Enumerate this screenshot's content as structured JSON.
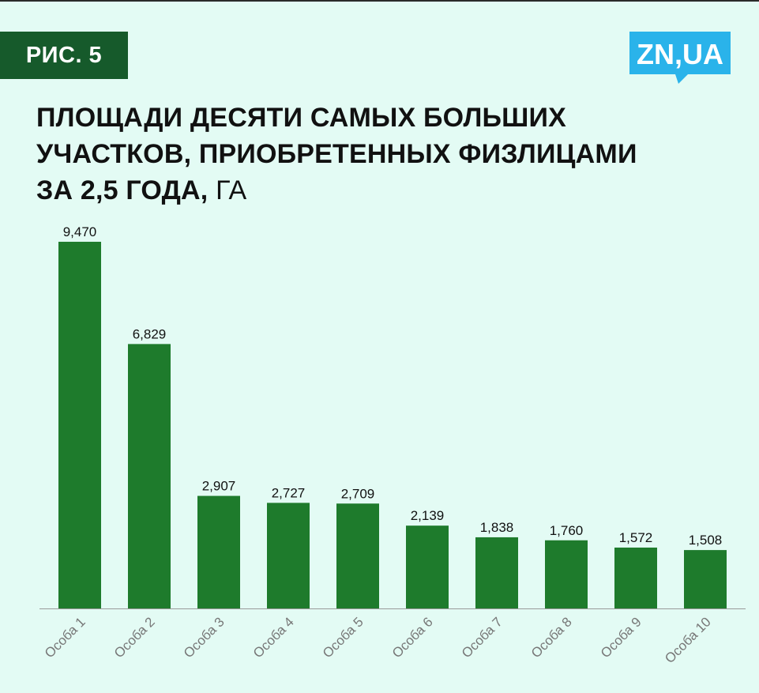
{
  "badge": "РИС. 5",
  "logo": {
    "text": "ZN,UA",
    "color": "#2ab3ea"
  },
  "title": {
    "lines": [
      "ПЛОЩАДИ ДЕСЯТИ САМЫХ БОЛЬШИХ",
      "УЧАСТКОВ, ПРИОБРЕТЕННЫХ ФИЗЛИЦАМИ",
      "ЗА 2,5 ГОДА,"
    ],
    "unit": "ГА"
  },
  "colors": {
    "bar": "#1e7b2c",
    "badge": "#165a2b",
    "background": "#e3fbf4"
  },
  "chart_data": {
    "type": "bar",
    "categories": [
      "Особа 1",
      "Особа 2",
      "Особа 3",
      "Особа 4",
      "Особа 5",
      "Особа 6",
      "Особа 7",
      "Особа 8",
      "Особа 9",
      "Особа 10"
    ],
    "values": [
      9.47,
      6.829,
      2.907,
      2.727,
      2.709,
      2.139,
      1.838,
      1.76,
      1.572,
      1.508
    ],
    "value_labels": [
      "9,470",
      "6,829",
      "2,907",
      "2,727",
      "2,709",
      "2,139",
      "1,838",
      "1,760",
      "1,572",
      "1,508"
    ],
    "title": "ПЛОЩАДИ ДЕСЯТИ САМЫХ БОЛЬШИХ УЧАСТКОВ, ПРИОБРЕТЕННЫХ ФИЗЛИЦАМИ ЗА 2,5 ГОДА, ГА",
    "xlabel": "",
    "ylabel": "",
    "ylim": [
      0,
      10
    ],
    "grid": false,
    "legend": "none"
  }
}
